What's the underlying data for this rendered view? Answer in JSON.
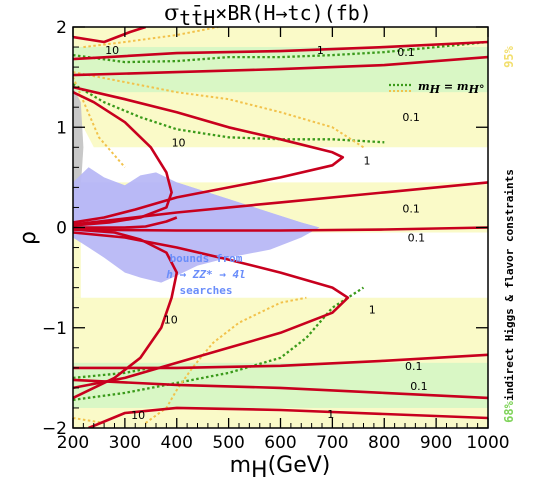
{
  "chart_data": {
    "type": "contour",
    "title": {
      "sigma": "σ",
      "sub": "tt̄H",
      "rest": "×BR(H→tc)(fb)"
    },
    "xlabel": "m",
    "xlabel_sub": "H",
    "xlabel_unit": "(GeV)",
    "ylabel": "ρ",
    "xlim": [
      200,
      1000
    ],
    "ylim": [
      -2,
      2
    ],
    "xticks": [
      200,
      300,
      400,
      500,
      600,
      700,
      800,
      900,
      1000
    ],
    "yticks": [
      -2,
      -1,
      0,
      1,
      2
    ],
    "bands": [
      {
        "name": "95%",
        "color": "#fafac8"
      },
      {
        "name": "68%",
        "color": "#d9f7c5"
      }
    ],
    "band_label_95": "95%",
    "band_label_68": "68%",
    "side_label": "indirect Higgs & flavor constraints",
    "legend": {
      "text": "m",
      "sub1": "H",
      "eq": " = m",
      "sub2": "H°"
    },
    "excluded_region": {
      "label_lines": [
        "bounds from",
        "h → ZZ* → 4l",
        "searches"
      ],
      "color": "#b8b8f6"
    },
    "contours": [
      {
        "level": 10,
        "color": "#c8001e"
      },
      {
        "level": 1,
        "color": "#c8001e"
      },
      {
        "level": 0.1,
        "color": "#c8001e"
      }
    ],
    "contour_labels": [
      {
        "text": "10",
        "x": 262,
        "y": 1.77
      },
      {
        "text": "1",
        "x": 670,
        "y": 1.77
      },
      {
        "text": "0.1",
        "x": 825,
        "y": 1.75
      },
      {
        "text": "0.1",
        "x": 835,
        "y": 1.1
      },
      {
        "text": "10",
        "x": 390,
        "y": 0.85
      },
      {
        "text": "1",
        "x": 760,
        "y": 0.67
      },
      {
        "text": "0.1",
        "x": 835,
        "y": 0.19
      },
      {
        "text": "0.1",
        "x": 845,
        "y": -0.1
      },
      {
        "text": "10",
        "x": 375,
        "y": -0.92
      },
      {
        "text": "1",
        "x": 770,
        "y": -0.82
      },
      {
        "text": "0.1",
        "x": 840,
        "y": -1.38
      },
      {
        "text": "0.1",
        "x": 850,
        "y": -1.58
      },
      {
        "text": "10",
        "x": 312,
        "y": -1.87
      },
      {
        "text": "1",
        "x": 690,
        "y": -1.86
      }
    ]
  }
}
